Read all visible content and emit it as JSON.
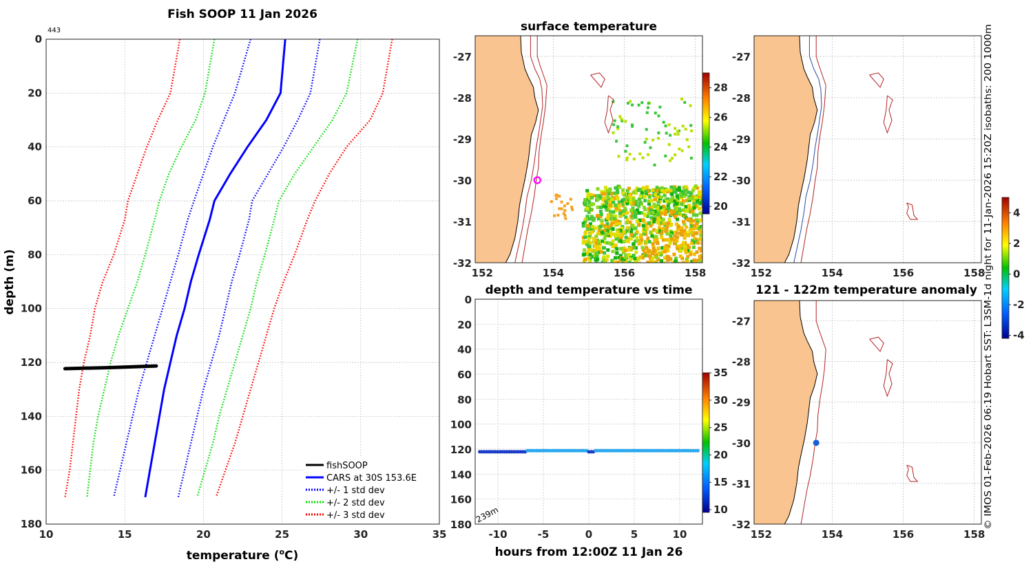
{
  "chart_data": [
    {
      "type": "line",
      "title": "Fish SOOP 11 Jan 2026",
      "corner_label": "443",
      "xlabel": "temperature (oC)",
      "xlabel_main": "temperature (",
      "xlabel_sup": "o",
      "xlabel_end": "C)",
      "ylabel": "depth (m)",
      "xlim": [
        10,
        35
      ],
      "ylim": [
        180,
        0
      ],
      "xticks": [
        10,
        15,
        20,
        25,
        30,
        35
      ],
      "yticks": [
        0,
        20,
        40,
        60,
        80,
        100,
        120,
        140,
        160,
        180
      ],
      "depths": [
        0,
        20,
        30,
        40,
        50,
        60,
        67,
        80,
        90,
        100,
        110,
        120,
        130,
        140,
        150,
        160,
        170
      ],
      "series": [
        {
          "name": "CARS at 30S 153.6E",
          "color": "#0000ff",
          "style": "solid",
          "values": [
            25.2,
            24.9,
            24.0,
            22.8,
            21.7,
            20.7,
            20.4,
            19.7,
            19.2,
            18.8,
            18.3,
            17.9,
            17.5,
            17.2,
            16.9,
            16.6,
            16.3
          ]
        },
        {
          "name": "+/- 1 std dev (upper)",
          "color": "#0000ff",
          "style": "dotted",
          "values": [
            27.4,
            26.8,
            26.0,
            25.1,
            24.1,
            23.1,
            22.9,
            22.3,
            21.8,
            21.4,
            21.0,
            20.5,
            20.0,
            19.6,
            19.2,
            18.8,
            18.4
          ]
        },
        {
          "name": "+/- 1 std dev (lower)",
          "color": "#0000ff",
          "style": "dotted",
          "values": [
            23.0,
            22.0,
            21.3,
            20.6,
            20.0,
            19.4,
            19.0,
            18.4,
            17.9,
            17.4,
            16.9,
            16.4,
            15.9,
            15.5,
            15.1,
            14.7,
            14.3
          ]
        },
        {
          "name": "+/- 2 std dev (upper)",
          "color": "#00dd00",
          "style": "dotted",
          "values": [
            29.8,
            29.1,
            28.2,
            27.0,
            25.8,
            24.8,
            24.5,
            23.9,
            23.4,
            23.0,
            22.5,
            22.0,
            21.5,
            21.0,
            20.6,
            20.1,
            19.6
          ]
        },
        {
          "name": "+/- 2 std dev (lower)",
          "color": "#00dd00",
          "style": "dotted",
          "values": [
            20.7,
            20.1,
            19.5,
            18.6,
            17.8,
            17.2,
            16.9,
            16.3,
            15.8,
            15.2,
            14.6,
            14.1,
            13.7,
            13.3,
            13.0,
            12.8,
            12.6
          ]
        },
        {
          "name": "+/- 3 std dev (upper)",
          "color": "#ff0000",
          "style": "dotted",
          "values": [
            32.0,
            31.4,
            30.6,
            29.1,
            28.0,
            27.1,
            26.6,
            25.8,
            25.1,
            24.5,
            24.0,
            23.5,
            23.0,
            22.5,
            22.0,
            21.4,
            20.8
          ]
        },
        {
          "name": "+/- 3 std dev (lower)",
          "color": "#ff0000",
          "style": "dotted",
          "values": [
            18.5,
            17.9,
            17.1,
            16.4,
            15.8,
            15.2,
            15.0,
            14.3,
            13.6,
            13.1,
            12.8,
            12.4,
            12.1,
            11.9,
            11.7,
            11.5,
            11.2
          ]
        }
      ],
      "profile": {
        "name": "fishSOOP",
        "color": "#000000",
        "points": [
          [
            11.2,
            122.3
          ],
          [
            14.0,
            121.9
          ],
          [
            16.0,
            121.5
          ],
          [
            17.0,
            121.3
          ]
        ]
      },
      "legend": {
        "placement": "bottom-right",
        "entries": [
          {
            "label": "fishSOOP",
            "color": "#000000",
            "style": "solid"
          },
          {
            "label": "CARS at 30S 153.6E",
            "color": "#0000ff",
            "style": "solid"
          },
          {
            "label": "+/- 1 std dev",
            "color": "#0000ff",
            "style": "dotted"
          },
          {
            "label": "+/- 2 std dev",
            "color": "#00dd00",
            "style": "dotted"
          },
          {
            "label": "+/- 3 std dev",
            "color": "#ff0000",
            "style": "dotted"
          }
        ]
      }
    },
    {
      "type": "heatmap",
      "title": "surface temperature",
      "xlim": [
        151.8,
        158.2
      ],
      "ylim": [
        -32,
        -26.5
      ],
      "xticks": [
        152,
        154,
        156,
        158
      ],
      "yticks": [
        -27,
        -28,
        -29,
        -30,
        -31,
        -32
      ],
      "colorbar": {
        "min": 19.5,
        "max": 29,
        "ticks": [
          20,
          22,
          24,
          26,
          28
        ]
      },
      "marker": {
        "lon": 153.55,
        "lat": -30.0,
        "color": "#ff00ff"
      }
    },
    {
      "type": "scatter",
      "title": "depth and temperature vs time",
      "xlabel": "hours from 12:00Z 11 Jan 26",
      "xlim": [
        -12.5,
        12.5
      ],
      "ylim": [
        180,
        0
      ],
      "xticks": [
        -10,
        -5,
        0,
        5,
        10
      ],
      "yticks": [
        0,
        20,
        40,
        60,
        80,
        100,
        120,
        140,
        160,
        180
      ],
      "annotation": "239m",
      "colorbar": {
        "min": 9.5,
        "max": 35,
        "ticks": [
          10,
          15,
          20,
          25,
          30,
          35
        ]
      },
      "track": {
        "depth_m": 121.5,
        "start_h": -12,
        "end_h": 12,
        "cold_segments": [
          [
            -12,
            -7
          ],
          [
            -0.2,
            0.6
          ]
        ]
      }
    },
    {
      "type": "map",
      "title": "",
      "xlim": [
        151.8,
        158.2
      ],
      "ylim": [
        -32,
        -26.5
      ],
      "xticks": [
        152,
        154,
        156,
        158
      ],
      "yticks": [
        -27,
        -28,
        -29,
        -30,
        -31,
        -32
      ]
    },
    {
      "type": "heatmap",
      "title": "121 - 122m temperature anomaly",
      "xlim": [
        151.8,
        158.2
      ],
      "ylim": [
        -32,
        -26.5
      ],
      "xticks": [
        152,
        154,
        156,
        158
      ],
      "yticks": [
        -27,
        -28,
        -29,
        -30,
        -31,
        -32
      ],
      "colorbar": {
        "min": -4.2,
        "max": 5,
        "ticks": [
          -4,
          -2,
          0,
          2,
          4
        ]
      },
      "marker": {
        "lon": 153.55,
        "lat": -30.0,
        "color": "#1560d6"
      }
    }
  ],
  "side_text": "© IMOS 01-Feb-2026 06:19 Hobart SST: L3SM-1d night for 11-Jan-2026 15:20Z isobaths: 200  1000m",
  "colors": {
    "land": "#f9c48f",
    "isobath_200": "#2a4aa0",
    "isobath_1000": "#b22222"
  }
}
